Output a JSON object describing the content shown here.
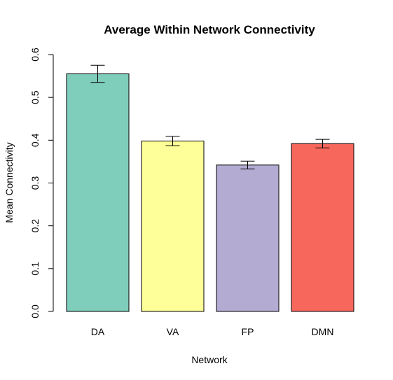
{
  "chart_data": {
    "type": "bar",
    "title": "Average Within Network Connectivity",
    "xlabel": "Network",
    "ylabel": "Mean Connectivity",
    "categories": [
      "DA",
      "VA",
      "FP",
      "DMN"
    ],
    "values": [
      0.555,
      0.398,
      0.342,
      0.392
    ],
    "errors": [
      0.02,
      0.011,
      0.009,
      0.01
    ],
    "colors": [
      "#7fcdbb",
      "#ffff99",
      "#b3abd2",
      "#f8675c"
    ],
    "ylim": [
      0,
      0.6
    ],
    "yticks": [
      "0.0",
      "0.1",
      "0.2",
      "0.3",
      "0.4",
      "0.5",
      "0.6"
    ],
    "ytick_values": [
      0,
      0.1,
      0.2,
      0.3,
      0.4,
      0.5,
      0.6
    ],
    "grid": false
  }
}
